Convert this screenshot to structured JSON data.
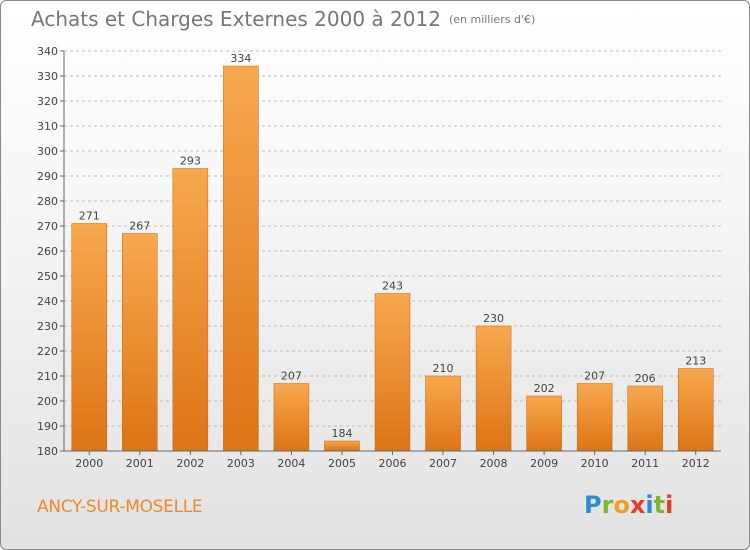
{
  "title": "Achats et Charges Externes 2000 à 2012",
  "subtitle": "(en milliers d'€)",
  "commune": "ANCY-SUR-MOSELLE",
  "logo": {
    "letters": [
      "P",
      "r",
      "o",
      "x",
      "i",
      "t",
      "i"
    ],
    "colors": [
      "#2d8ad6",
      "#7cb82f",
      "#f0a020",
      "#e23c2a",
      "#2d8ad6",
      "#7cb82f",
      "#e23c2a"
    ]
  },
  "colors": {
    "bar_light": "#f8a84e",
    "bar_dark": "#dd7415",
    "axis": "#666666",
    "grid": "#bdbdbd",
    "text": "#444444"
  },
  "chart_data": {
    "type": "bar",
    "categories": [
      "2000",
      "2001",
      "2002",
      "2003",
      "2004",
      "2005",
      "2006",
      "2007",
      "2008",
      "2009",
      "2010",
      "2011",
      "2012"
    ],
    "values": [
      271,
      267,
      293,
      334,
      207,
      184,
      243,
      210,
      230,
      202,
      207,
      206,
      213
    ],
    "ylim": [
      180,
      340
    ],
    "yticks": [
      180,
      190,
      200,
      210,
      220,
      230,
      240,
      250,
      260,
      270,
      280,
      290,
      300,
      310,
      320,
      330,
      340
    ],
    "grid": true,
    "data_labels": true
  }
}
